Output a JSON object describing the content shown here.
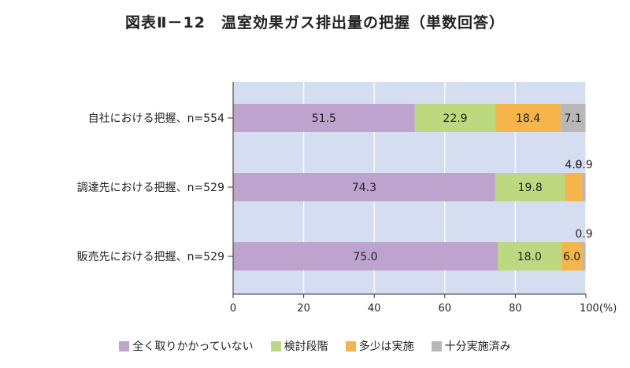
{
  "chart_data": {
    "type": "bar",
    "orientation": "horizontal",
    "stacked": true,
    "title": "図表Ⅱ－12　温室効果ガス排出量の把握（単数回答）",
    "xlabel": "",
    "ylabel": "",
    "xlim": [
      0,
      100
    ],
    "x_ticks": [
      "0",
      "20",
      "40",
      "60",
      "80",
      "100(%)"
    ],
    "x_tick_values": [
      0,
      20,
      40,
      60,
      80,
      100
    ],
    "grid": true,
    "legend_position": "bottom",
    "categories": [
      "自社における把握、n=554",
      "調達先における把握、n=529",
      "販売先における把握、n=529"
    ],
    "series": [
      {
        "name": "全く取りかかっていない",
        "color": "#bea3cf",
        "values": [
          51.5,
          74.3,
          75.0
        ],
        "labels": [
          "51.5",
          "74.3",
          "75.0"
        ]
      },
      {
        "name": "検討段階",
        "color": "#bcd97f",
        "values": [
          22.9,
          19.8,
          18.0
        ],
        "labels": [
          "22.9",
          "19.8",
          "18.0"
        ]
      },
      {
        "name": "多少は実施",
        "color": "#f6b54b",
        "values": [
          18.4,
          4.9,
          6.0
        ],
        "labels": [
          "18.4",
          "4.9",
          "6.0"
        ]
      },
      {
        "name": "十分実施済み",
        "color": "#b8b8b8",
        "values": [
          7.1,
          0.9,
          0.9
        ],
        "labels": [
          "7.1",
          "0.9",
          "0.9"
        ]
      }
    ]
  }
}
